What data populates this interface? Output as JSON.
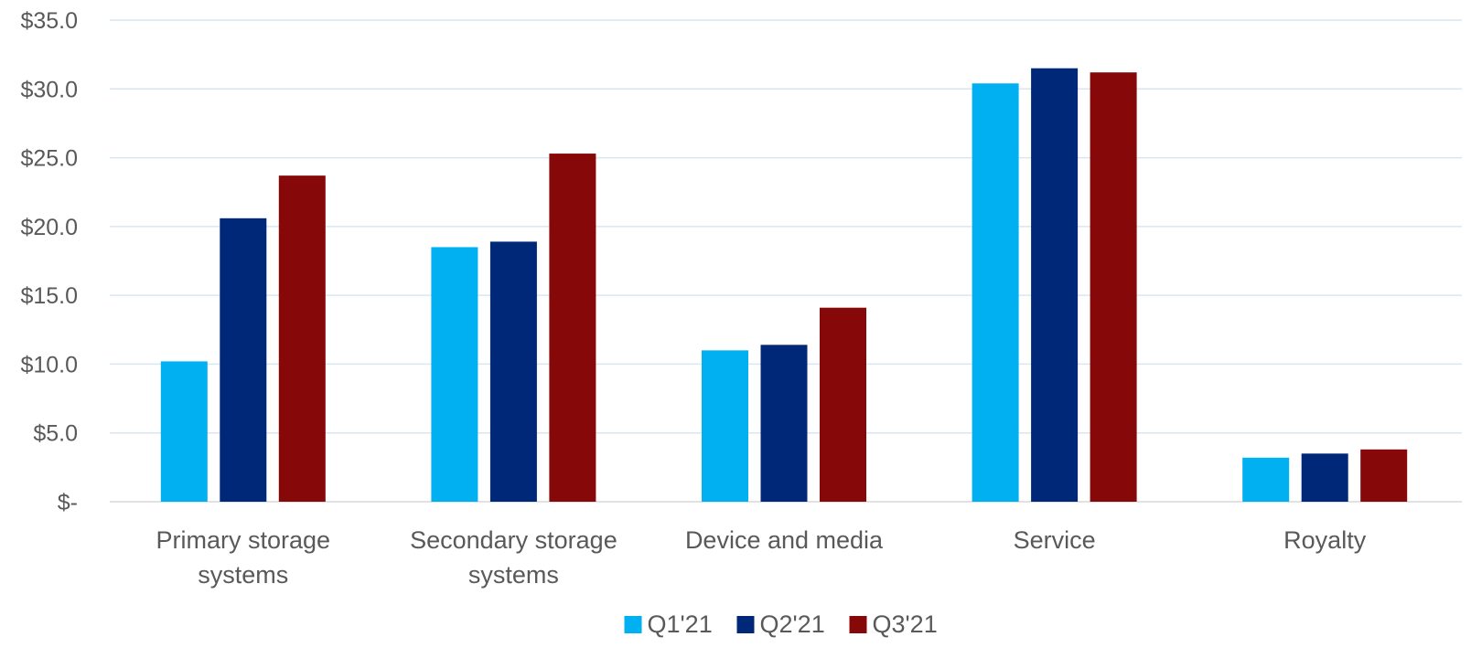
{
  "chart_data": {
    "type": "bar",
    "categories": [
      [
        "Primary storage",
        "systems"
      ],
      [
        "Secondary storage",
        "systems"
      ],
      [
        "Device and media"
      ],
      [
        "Service"
      ],
      [
        "Royalty"
      ]
    ],
    "series": [
      {
        "name": "Q1'21",
        "color": "#00b0f0",
        "values": [
          10.2,
          18.5,
          11.0,
          30.4,
          3.2
        ]
      },
      {
        "name": "Q2'21",
        "color": "#002878",
        "values": [
          20.6,
          18.9,
          11.4,
          31.5,
          3.5
        ]
      },
      {
        "name": "Q3'21",
        "color": "#870808",
        "values": [
          23.7,
          25.3,
          14.1,
          31.2,
          3.8
        ]
      }
    ],
    "y_ticks": [
      "$-",
      "$5.0",
      "$10.0",
      "$15.0",
      "$20.0",
      "$25.0",
      "$30.0",
      "$35.0"
    ],
    "ylim": [
      0,
      35
    ],
    "y_step": 5,
    "grid": true,
    "legend_position": "bottom-center",
    "title": "",
    "xlabel": "",
    "ylabel": ""
  }
}
